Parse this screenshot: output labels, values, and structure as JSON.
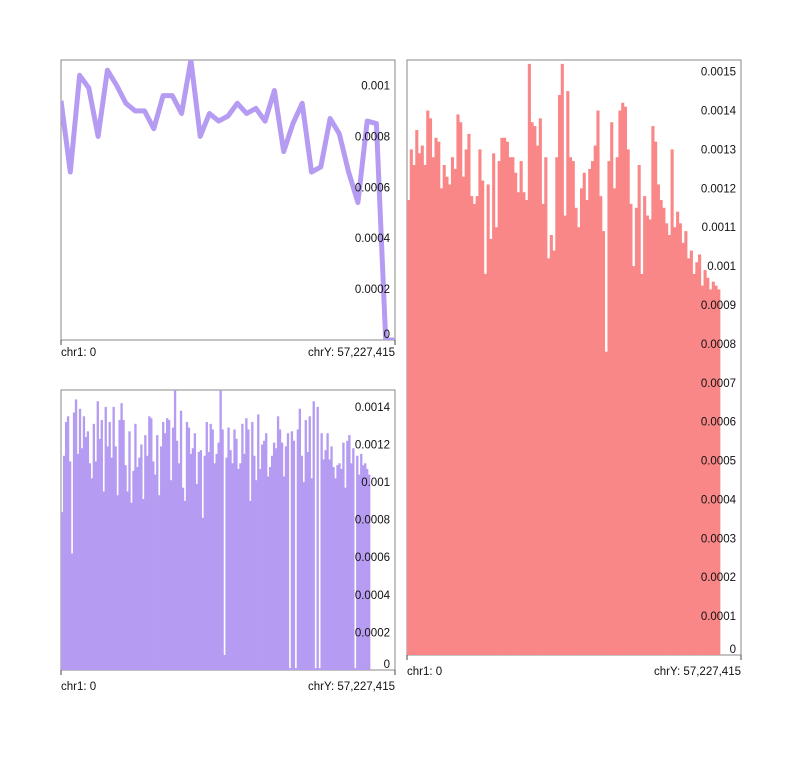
{
  "chart_data": [
    {
      "id": "top-left-line",
      "type": "line",
      "color": "#b59cf2",
      "y_tick_labels": [
        "0",
        "0.0002",
        "0.0004",
        "0.0006",
        "0.0008",
        "0.001"
      ],
      "y_ticks": [
        0,
        0.0002,
        0.0004,
        0.0006,
        0.0008,
        0.001
      ],
      "ylim": [
        0,
        0.0011
      ],
      "x_start_label": "chr1: 0",
      "x_end_label": "chrY: 57,227,415",
      "values": [
        0.00094,
        0.00066,
        0.00104,
        0.00099,
        0.0008,
        0.00106,
        0.001,
        0.00093,
        0.0009,
        0.0009,
        0.00083,
        0.00096,
        0.00096,
        0.00089,
        0.00111,
        0.0008,
        0.00089,
        0.00086,
        0.00088,
        0.00093,
        0.00089,
        0.00091,
        0.00086,
        0.00098,
        0.00074,
        0.00085,
        0.00093,
        0.00066,
        0.00068,
        0.00087,
        0.00081,
        0.00066,
        0.00054,
        0.00086,
        0.00085,
        0.0,
        0.0
      ]
    },
    {
      "id": "bottom-left-bars",
      "type": "bar",
      "color": "#b59cf2",
      "y_tick_labels": [
        "0",
        "0.0002",
        "0.0004",
        "0.0006",
        "0.0008",
        "0.001",
        "0.0012",
        "0.0014"
      ],
      "y_ticks": [
        0,
        0.0002,
        0.0004,
        0.0006,
        0.0008,
        0.001,
        0.0012,
        0.0014
      ],
      "ylim": [
        0,
        0.00149
      ],
      "x_start_label": "chr1: 0",
      "x_end_label": "chrY: 57,227,415",
      "values": [
        0.00084,
        0.00114,
        0.00132,
        0.00135,
        0.00111,
        0.00062,
        0.00137,
        0.00144,
        0.00115,
        0.00139,
        0.00118,
        0.00135,
        0.00124,
        0.00127,
        0.0011,
        0.00102,
        0.00131,
        0.00111,
        0.00143,
        0.00123,
        0.00133,
        0.00095,
        0.0014,
        0.00119,
        0.00132,
        0.00113,
        0.0014,
        0.00119,
        0.00093,
        0.00133,
        0.00142,
        0.00133,
        0.00109,
        0.00095,
        0.00127,
        0.00089,
        0.00106,
        0.00131,
        0.00108,
        0.00113,
        0.0012,
        0.00091,
        0.00125,
        0.00114,
        0.00135,
        0.00134,
        0.00111,
        0.00104,
        0.00125,
        0.00093,
        0.00119,
        0.00132,
        0.00126,
        0.00134,
        0.00133,
        0.00101,
        0.00129,
        0.00149,
        0.00122,
        0.0011,
        0.00138,
        0.00097,
        0.0009,
        0.00132,
        0.00129,
        0.00115,
        0.00118,
        0.00126,
        0.00099,
        0.00116,
        0.00117,
        0.00081,
        0.00114,
        0.00132,
        0.00116,
        0.00131,
        0.00128,
        0.0011,
        0.00115,
        0.00121,
        0.00149,
        0.00128,
        8e-05,
        0.00113,
        0.00129,
        0.00117,
        0.0011,
        0.00128,
        0.00123,
        0.00107,
        0.0011,
        0.00131,
        0.00115,
        0.00134,
        0.00128,
        0.0009,
        0.00132,
        0.00114,
        0.00101,
        0.00136,
        0.00107,
        0.0012,
        0.00122,
        0.00126,
        0.00103,
        0.00108,
        0.00114,
        0.00121,
        0.00118,
        0.00135,
        0.00128,
        0.00121,
        0.00103,
        0.00119,
        0.00126,
        1e-05,
        0.00127,
        0.00122,
        1e-05,
        0.00128,
        0.00139,
        0.00114,
        0.001,
        0.00133,
        0.00116,
        0.00135,
        0.00102,
        0.00143,
        1e-05,
        0.0014,
        1e-05,
        0.00126,
        0.00112,
        0.00117,
        0.00126,
        0.00112,
        0.00119,
        0.00108,
        0.00102,
        0.00109,
        0.0011,
        0.00107,
        0.00121,
        0.00097,
        0.00122,
        0.00125,
        0.0011,
        0.00118,
        1e-05,
        0.00114,
        0.00104,
        0.00115,
        0.00109,
        0.0011,
        0.00107,
        0.00104
      ]
    },
    {
      "id": "right-bars",
      "type": "bar",
      "color": "#fa8787",
      "y_tick_labels": [
        "0",
        "0.0001",
        "0.0002",
        "0.0003",
        "0.0004",
        "0.0005",
        "0.0006",
        "0.0007",
        "0.0008",
        "0.0009",
        "0.001",
        "0.0011",
        "0.0012",
        "0.0013",
        "0.0014",
        "0.0015"
      ],
      "y_ticks": [
        0,
        0.0001,
        0.0002,
        0.0003,
        0.0004,
        0.0005,
        0.0006,
        0.0007,
        0.0008,
        0.0009,
        0.001,
        0.0011,
        0.0012,
        0.0013,
        0.0014,
        0.0015
      ],
      "ylim": [
        0,
        0.00153
      ],
      "x_start_label": "chr1: 0",
      "x_end_label": "chrY: 57,227,415",
      "values": [
        0.00117,
        0.0013,
        0.00126,
        0.00135,
        0.00129,
        0.00131,
        0.00126,
        0.0014,
        0.00138,
        0.00128,
        0.00133,
        0.00132,
        0.0012,
        0.00126,
        0.00123,
        0.00121,
        0.00128,
        0.00125,
        0.00139,
        0.00137,
        0.00123,
        0.0013,
        0.00134,
        0.00118,
        0.00116,
        0.00118,
        0.0013,
        0.00122,
        0.00098,
        0.00121,
        0.00107,
        0.00129,
        0.0011,
        0.00127,
        0.00133,
        0.00133,
        0.00132,
        0.00128,
        0.00128,
        0.00124,
        0.00119,
        0.00127,
        0.00119,
        0.00117,
        0.00152,
        0.00137,
        0.00136,
        0.00131,
        0.00138,
        0.00116,
        0.00128,
        0.00102,
        0.00108,
        0.00104,
        0.00128,
        0.00144,
        0.00152,
        0.00113,
        0.00145,
        0.00128,
        0.00127,
        0.00115,
        0.0011,
        0.0012,
        0.00124,
        0.00117,
        0.00125,
        0.00127,
        0.00131,
        0.0014,
        0.00118,
        0.00109,
        0.00078,
        0.00127,
        0.00137,
        0.0012,
        0.00128,
        0.0014,
        0.00142,
        0.00141,
        0.0013,
        0.00116,
        0.001,
        0.00115,
        0.00126,
        0.00098,
        0.00118,
        0.00113,
        0.00112,
        0.00136,
        0.00132,
        0.00121,
        0.00117,
        0.00115,
        0.00111,
        0.00108,
        0.0013,
        0.0011,
        0.00114,
        0.00111,
        0.00106,
        0.00109,
        0.00102,
        0.00104,
        0.00098,
        0.00101,
        0.00103,
        0.00095,
        0.00099,
        0.00097,
        0.00094,
        0.00096,
        0.00095,
        0.00094
      ]
    }
  ]
}
